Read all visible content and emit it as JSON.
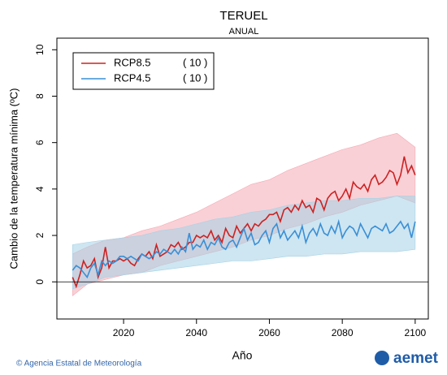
{
  "chart_data": {
    "type": "line",
    "title": "TERUEL",
    "subtitle": "ANUAL",
    "y_label": "Cambio de la temperatura mínima (ºC)",
    "x_label": "Año",
    "footer": "© Agencia Estatal de Meteorología",
    "logo": "aemet",
    "x": [
      2006,
      2007,
      2008,
      2009,
      2010,
      2011,
      2012,
      2013,
      2014,
      2015,
      2016,
      2017,
      2018,
      2019,
      2020,
      2021,
      2022,
      2023,
      2024,
      2025,
      2026,
      2027,
      2028,
      2029,
      2030,
      2031,
      2032,
      2033,
      2034,
      2035,
      2036,
      2037,
      2038,
      2039,
      2040,
      2041,
      2042,
      2043,
      2044,
      2045,
      2046,
      2047,
      2048,
      2049,
      2050,
      2051,
      2052,
      2053,
      2054,
      2055,
      2056,
      2057,
      2058,
      2059,
      2060,
      2061,
      2062,
      2063,
      2064,
      2065,
      2066,
      2067,
      2068,
      2069,
      2070,
      2071,
      2072,
      2073,
      2074,
      2075,
      2076,
      2077,
      2078,
      2079,
      2080,
      2081,
      2082,
      2083,
      2084,
      2085,
      2086,
      2087,
      2088,
      2089,
      2090,
      2091,
      2092,
      2093,
      2094,
      2095,
      2096,
      2097,
      2098,
      2099,
      2100
    ],
    "series": [
      {
        "name": "RCP8.5",
        "note": "( 10 )",
        "color": "#cc2222",
        "band_color": "#f4aab4",
        "values": [
          0.2,
          -0.2,
          0.3,
          0.9,
          0.6,
          0.7,
          1.0,
          0.2,
          0.6,
          1.5,
          0.6,
          0.9,
          0.9,
          1.0,
          0.9,
          1.0,
          0.8,
          0.7,
          1.0,
          1.2,
          1.1,
          1.3,
          1.0,
          1.6,
          1.1,
          1.2,
          1.3,
          1.6,
          1.5,
          1.7,
          1.4,
          1.5,
          1.7,
          1.7,
          2.0,
          1.9,
          2.0,
          1.9,
          2.2,
          1.8,
          2.0,
          1.7,
          2.3,
          2.0,
          1.9,
          2.4,
          2.1,
          2.3,
          2.5,
          2.2,
          2.5,
          2.4,
          2.6,
          2.7,
          2.9,
          2.9,
          3.0,
          2.6,
          3.1,
          3.2,
          3.0,
          3.3,
          3.1,
          3.5,
          3.2,
          3.3,
          3.0,
          3.6,
          3.5,
          3.1,
          3.6,
          3.8,
          3.9,
          3.5,
          3.7,
          4.0,
          3.6,
          4.3,
          4.1,
          4.0,
          4.2,
          3.9,
          4.4,
          4.6,
          4.2,
          4.3,
          4.5,
          4.8,
          4.7,
          4.2,
          4.6,
          5.4,
          4.7,
          5.0,
          4.6
        ],
        "band": {
          "x": [
            2006,
            2010,
            2015,
            2020,
            2025,
            2030,
            2035,
            2040,
            2045,
            2050,
            2055,
            2060,
            2065,
            2070,
            2075,
            2080,
            2085,
            2090,
            2095,
            2100
          ],
          "low": [
            -0.6,
            -0.1,
            0.1,
            0.3,
            0.4,
            0.7,
            0.9,
            1.1,
            1.3,
            1.5,
            1.8,
            2.0,
            2.3,
            2.5,
            2.8,
            3.0,
            3.3,
            3.5,
            3.7,
            3.4
          ],
          "high": [
            1.2,
            1.5,
            1.8,
            1.9,
            2.2,
            2.4,
            2.7,
            3.0,
            3.4,
            3.8,
            4.2,
            4.4,
            4.8,
            5.1,
            5.4,
            5.7,
            5.9,
            6.2,
            6.4,
            5.8
          ]
        }
      },
      {
        "name": "RCP4.5",
        "note": "( 10 )",
        "color": "#3a8fd6",
        "band_color": "#a6d2e6",
        "values": [
          0.5,
          0.7,
          0.6,
          0.4,
          0.2,
          0.6,
          0.8,
          0.3,
          0.9,
          0.7,
          0.9,
          0.8,
          0.9,
          1.1,
          1.1,
          1.0,
          1.1,
          1.0,
          0.9,
          1.2,
          1.1,
          1.0,
          1.1,
          1.3,
          1.2,
          1.4,
          1.3,
          1.2,
          1.4,
          1.2,
          1.5,
          1.3,
          2.1,
          1.4,
          1.6,
          1.5,
          1.8,
          1.4,
          1.7,
          1.6,
          1.9,
          1.5,
          1.4,
          1.7,
          1.8,
          1.5,
          1.9,
          2.3,
          1.8,
          2.1,
          1.6,
          1.7,
          2.0,
          2.2,
          1.7,
          2.3,
          2.5,
          1.9,
          2.2,
          1.8,
          2.0,
          2.2,
          1.9,
          2.4,
          1.7,
          2.1,
          2.3,
          2.0,
          2.5,
          2.1,
          2.0,
          2.4,
          2.1,
          2.6,
          1.9,
          2.2,
          2.4,
          2.3,
          2.0,
          2.5,
          2.2,
          1.9,
          2.3,
          2.4,
          2.3,
          2.2,
          2.5,
          2.1,
          2.2,
          2.4,
          2.6,
          2.3,
          2.5,
          1.9,
          2.6
        ],
        "band": {
          "x": [
            2006,
            2010,
            2015,
            2020,
            2025,
            2030,
            2035,
            2040,
            2045,
            2050,
            2055,
            2060,
            2065,
            2070,
            2075,
            2080,
            2085,
            2090,
            2095,
            2100
          ],
          "low": [
            -0.3,
            -0.1,
            0.2,
            0.3,
            0.4,
            0.5,
            0.6,
            0.7,
            0.8,
            0.9,
            0.9,
            1.0,
            1.1,
            1.1,
            1.2,
            1.2,
            1.3,
            1.3,
            1.3,
            1.4
          ],
          "high": [
            1.6,
            1.7,
            1.8,
            1.9,
            2.0,
            2.2,
            2.3,
            2.5,
            2.7,
            2.8,
            3.0,
            3.1,
            3.3,
            3.4,
            3.5,
            3.5,
            3.6,
            3.6,
            3.7,
            3.7
          ]
        }
      }
    ],
    "xlim": [
      2001.7,
      2103.6
    ],
    "xticks": [
      2020,
      2040,
      2060,
      2080,
      2100
    ],
    "ylim": [
      -1.6,
      10.5
    ],
    "yticks": [
      0,
      2,
      4,
      6,
      8,
      10
    ],
    "hline": 0,
    "legend": "upper left"
  }
}
